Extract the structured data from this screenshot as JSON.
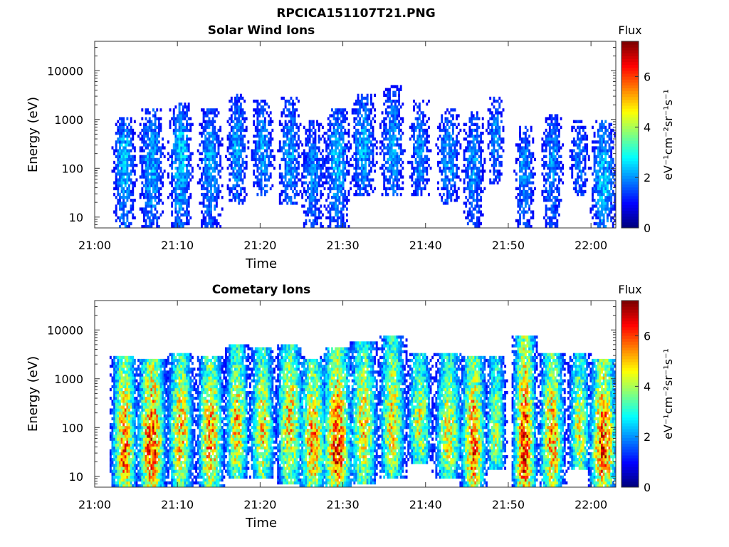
{
  "figure": {
    "filename": "RPCICA151107T21.PNG"
  },
  "chart_data": [
    {
      "type": "heatmap",
      "title": "Solar Wind Ions",
      "xlabel": "Time",
      "ylabel": "Energy (eV)",
      "x_ticks": [
        "21:00",
        "21:10",
        "21:20",
        "21:30",
        "21:40",
        "21:50",
        "22:00"
      ],
      "x_range_minutes": [
        0,
        63
      ],
      "y_scale": "log",
      "y_ticks": [
        10,
        100,
        1000,
        10000
      ],
      "y_tick_labels": [
        "10",
        "100",
        "1000",
        "10000"
      ],
      "y_range": [
        6,
        40000
      ],
      "colorbar": {
        "label": "Flux",
        "units_label": "eV⁻¹cm⁻²sr⁻¹s⁻¹",
        "range": [
          0,
          7.4
        ],
        "ticks": [
          0,
          2,
          4,
          6
        ],
        "tick_labels": [
          "0",
          "2",
          "4",
          "6"
        ],
        "colormap": "jet"
      },
      "bursts": [
        {
          "t": 3.6,
          "w": 1.6,
          "elo": 6,
          "ehi": 900,
          "peak_e": 250,
          "peak": 2.4
        },
        {
          "t": 6.9,
          "w": 1.8,
          "elo": 6,
          "ehi": 1500,
          "peak_e": 200,
          "peak": 2.3
        },
        {
          "t": 10.4,
          "w": 1.7,
          "elo": 6,
          "ehi": 1800,
          "peak_e": 250,
          "peak": 2.5
        },
        {
          "t": 14.0,
          "w": 1.7,
          "elo": 6,
          "ehi": 1500,
          "peak_e": 180,
          "peak": 2.2
        },
        {
          "t": 17.2,
          "w": 1.5,
          "elo": 20,
          "ehi": 3000,
          "peak_e": 300,
          "peak": 2.2
        },
        {
          "t": 20.3,
          "w": 1.6,
          "elo": 30,
          "ehi": 2000,
          "peak_e": 250,
          "peak": 2.2
        },
        {
          "t": 23.6,
          "w": 1.7,
          "elo": 20,
          "ehi": 2500,
          "peak_e": 150,
          "peak": 2.2
        },
        {
          "t": 26.4,
          "w": 1.8,
          "elo": 6,
          "ehi": 800,
          "peak_e": 80,
          "peak": 2.0
        },
        {
          "t": 29.3,
          "w": 1.9,
          "elo": 6,
          "ehi": 1500,
          "peak_e": 150,
          "peak": 2.3
        },
        {
          "t": 32.5,
          "w": 1.8,
          "elo": 30,
          "ehi": 3000,
          "peak_e": 300,
          "peak": 2.3
        },
        {
          "t": 36.0,
          "w": 1.7,
          "elo": 30,
          "ehi": 4000,
          "peak_e": 250,
          "peak": 2.2
        },
        {
          "t": 39.3,
          "w": 1.6,
          "elo": 30,
          "ehi": 2000,
          "peak_e": 200,
          "peak": 2.1
        },
        {
          "t": 42.8,
          "w": 1.8,
          "elo": 20,
          "ehi": 1500,
          "peak_e": 200,
          "peak": 2.1
        },
        {
          "t": 45.8,
          "w": 1.6,
          "elo": 6,
          "ehi": 1200,
          "peak_e": 150,
          "peak": 2.1
        },
        {
          "t": 48.5,
          "w": 1.3,
          "elo": 50,
          "ehi": 2500,
          "peak_e": 500,
          "peak": 2.0
        },
        {
          "t": 52.0,
          "w": 1.5,
          "elo": 6,
          "ehi": 600,
          "peak_e": 120,
          "peak": 2.1
        },
        {
          "t": 55.3,
          "w": 1.6,
          "elo": 6,
          "ehi": 1000,
          "peak_e": 200,
          "peak": 2.1
        },
        {
          "t": 58.6,
          "w": 1.4,
          "elo": 30,
          "ehi": 800,
          "peak_e": 200,
          "peak": 2.0
        },
        {
          "t": 61.5,
          "w": 1.8,
          "elo": 6,
          "ehi": 800,
          "peak_e": 60,
          "peak": 2.5
        }
      ]
    },
    {
      "type": "heatmap",
      "title": "Cometary Ions",
      "xlabel": "Time",
      "ylabel": "Energy (eV)",
      "x_ticks": [
        "21:00",
        "21:10",
        "21:20",
        "21:30",
        "21:40",
        "21:50",
        "22:00"
      ],
      "x_range_minutes": [
        0,
        63
      ],
      "y_scale": "log",
      "y_ticks": [
        10,
        100,
        1000,
        10000
      ],
      "y_tick_labels": [
        "10",
        "100",
        "1000",
        "10000"
      ],
      "y_range": [
        6,
        40000
      ],
      "colorbar": {
        "label": "Flux",
        "units_label": "eV⁻¹cm⁻²sr⁻¹s⁻¹",
        "range": [
          0,
          7.4
        ],
        "ticks": [
          0,
          2,
          4,
          6
        ],
        "tick_labels": [
          "0",
          "2",
          "4",
          "6"
        ],
        "colormap": "jet"
      },
      "bursts": [
        {
          "t": 3.6,
          "w": 1.6,
          "elo": 6,
          "ehi": 2500,
          "peak_e": 25,
          "peak": 5.8
        },
        {
          "t": 6.9,
          "w": 1.8,
          "elo": 6,
          "ehi": 2000,
          "peak_e": 40,
          "peak": 6.4
        },
        {
          "t": 10.4,
          "w": 1.7,
          "elo": 6,
          "ehi": 3000,
          "peak_e": 80,
          "peak": 5.2
        },
        {
          "t": 14.0,
          "w": 1.7,
          "elo": 6,
          "ehi": 2500,
          "peak_e": 50,
          "peak": 5.6
        },
        {
          "t": 17.2,
          "w": 1.5,
          "elo": 10,
          "ehi": 4000,
          "peak_e": 100,
          "peak": 5.2
        },
        {
          "t": 20.3,
          "w": 1.6,
          "elo": 10,
          "ehi": 3500,
          "peak_e": 80,
          "peak": 5.0
        },
        {
          "t": 23.6,
          "w": 1.7,
          "elo": 8,
          "ehi": 4000,
          "peak_e": 150,
          "peak": 5.2
        },
        {
          "t": 26.4,
          "w": 1.8,
          "elo": 6,
          "ehi": 2000,
          "peak_e": 40,
          "peak": 5.6
        },
        {
          "t": 29.3,
          "w": 1.9,
          "elo": 6,
          "ehi": 3500,
          "peak_e": 25,
          "peak": 6.2
        },
        {
          "t": 32.5,
          "w": 1.8,
          "elo": 8,
          "ehi": 5000,
          "peak_e": 100,
          "peak": 5.0
        },
        {
          "t": 36.0,
          "w": 1.7,
          "elo": 10,
          "ehi": 6000,
          "peak_e": 100,
          "peak": 5.0
        },
        {
          "t": 39.3,
          "w": 1.6,
          "elo": 20,
          "ehi": 3000,
          "peak_e": 100,
          "peak": 4.6
        },
        {
          "t": 42.8,
          "w": 1.8,
          "elo": 10,
          "ehi": 3000,
          "peak_e": 60,
          "peak": 4.8
        },
        {
          "t": 45.8,
          "w": 1.6,
          "elo": 6,
          "ehi": 2500,
          "peak_e": 30,
          "peak": 6.0
        },
        {
          "t": 48.5,
          "w": 1.3,
          "elo": 15,
          "ehi": 2500,
          "peak_e": 60,
          "peak": 4.4
        },
        {
          "t": 52.0,
          "w": 1.5,
          "elo": 6,
          "ehi": 6000,
          "peak_e": 15,
          "peak": 6.4
        },
        {
          "t": 55.3,
          "w": 1.6,
          "elo": 6,
          "ehi": 3000,
          "peak_e": 40,
          "peak": 5.6
        },
        {
          "t": 58.6,
          "w": 1.4,
          "elo": 15,
          "ehi": 3000,
          "peak_e": 60,
          "peak": 4.6
        },
        {
          "t": 61.5,
          "w": 1.8,
          "elo": 6,
          "ehi": 2000,
          "peak_e": 30,
          "peak": 6.2
        }
      ]
    }
  ]
}
